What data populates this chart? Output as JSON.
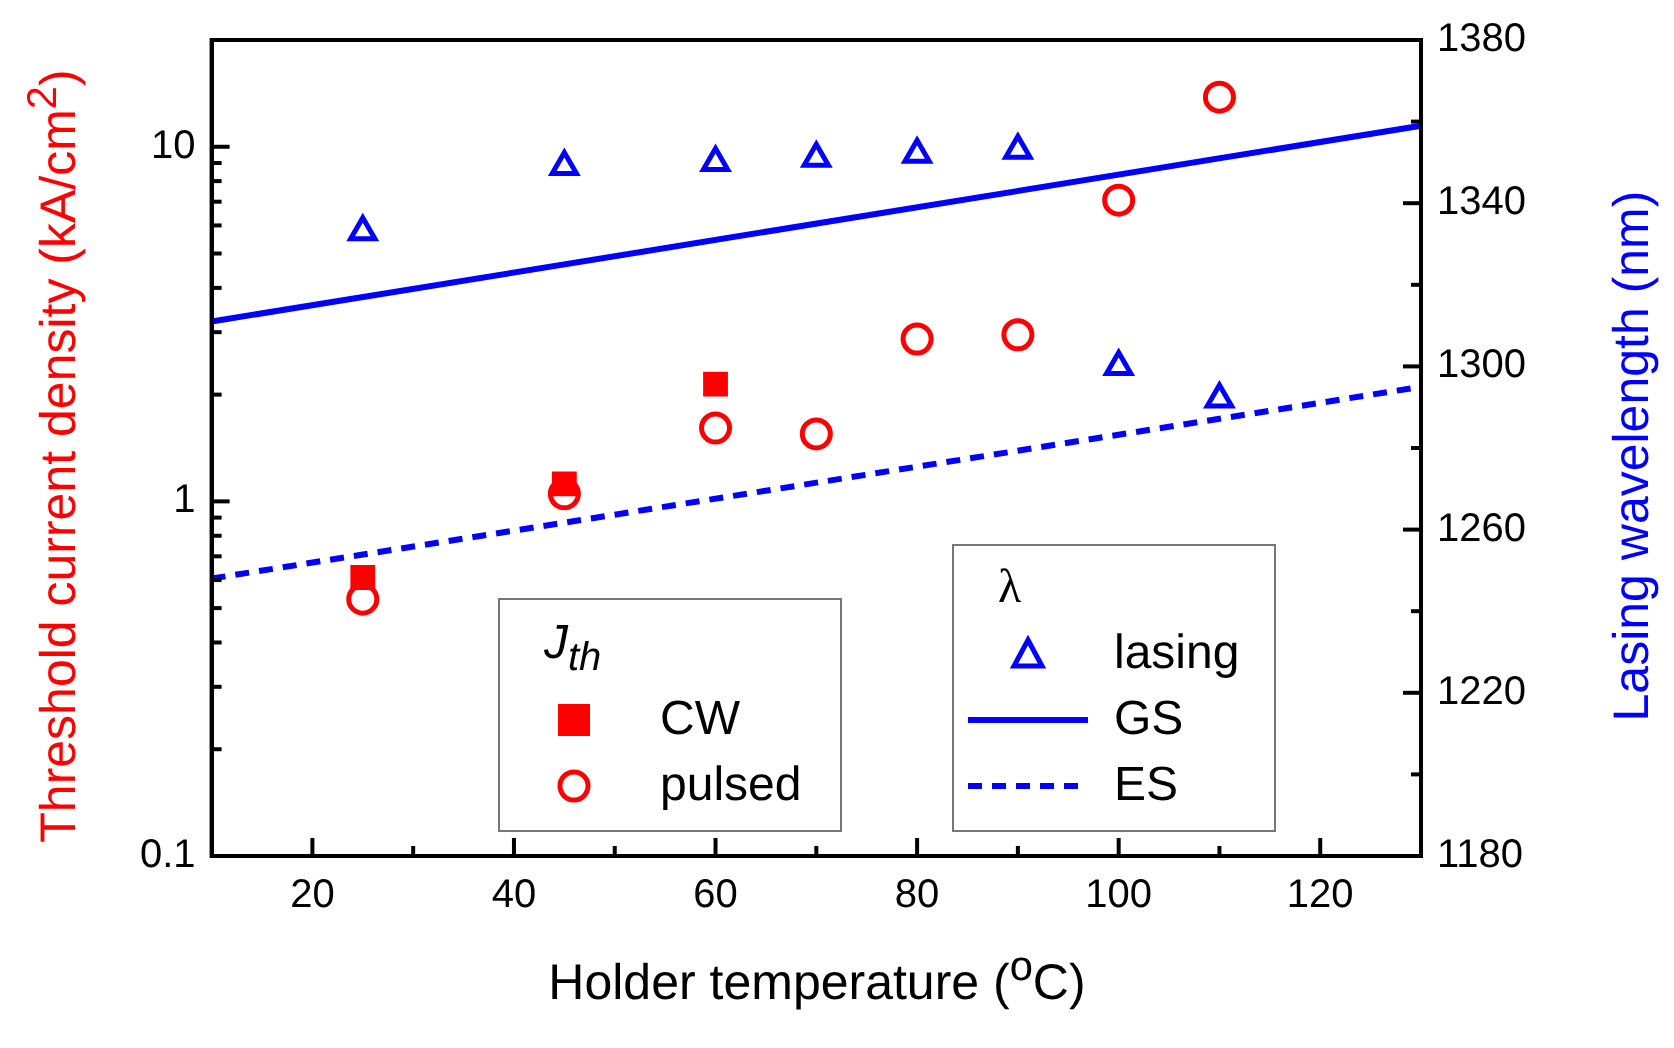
{
  "chart_data": {
    "type": "scatter",
    "xlabel": "Holder temperature ($^{o}$C)",
    "ylabel": "Threshold current density (kA/cm$^{2}$)",
    "y2label": "Lasing wavelength (nm)",
    "annotations": [
      "J$_{th}$",
      "λ"
    ],
    "xlim": [
      10,
      130
    ],
    "xticks": [
      20,
      {
        "value": 30,
        "label": null
      },
      40,
      {
        "value": 50,
        "label": null
      },
      60,
      {
        "value": 70,
        "label": null
      },
      80,
      {
        "value": 90,
        "label": null
      },
      100,
      {
        "value": 110,
        "label": null
      },
      120
    ],
    "ylim": [
      0.1,
      20
    ],
    "log": "y",
    "yticks": [
      0.1,
      {
        "value": 0.2,
        "label": null
      },
      {
        "value": 0.3,
        "label": null
      },
      {
        "value": 0.4,
        "label": null
      },
      {
        "value": 0.5,
        "label": null
      },
      {
        "value": 0.6,
        "label": null
      },
      {
        "value": 0.7,
        "label": null
      },
      {
        "value": 0.8,
        "label": null
      },
      {
        "value": 0.9,
        "label": null
      },
      1,
      {
        "value": 2,
        "label": null
      },
      {
        "value": 3,
        "label": null
      },
      {
        "value": 4,
        "label": null
      },
      {
        "value": 5,
        "label": null
      },
      {
        "value": 6,
        "label": null
      },
      {
        "value": 7,
        "label": null
      },
      {
        "value": 8,
        "label": null
      },
      {
        "value": 9,
        "label": null
      },
      10
    ],
    "y2lim": [
      1180,
      1380
    ],
    "y2ticks": [
      1180,
      {
        "value": 1200,
        "label": null
      },
      1220,
      {
        "value": 1240,
        "label": null
      },
      1260,
      {
        "value": 1280,
        "label": null
      },
      1300,
      {
        "value": 1320,
        "label": null
      },
      1340,
      {
        "value": 1360,
        "label": null
      },
      1380
    ],
    "grid": false,
    "legend": "bottom right",
    "series": [
      {
        "name": "CW",
        "type": "scatter",
        "marker": "square",
        "color": "#ff0000",
        "x": [
          25,
          45,
          60
        ],
        "values": [
          0.61,
          1.12,
          2.14
        ]
      },
      {
        "name": "pulsed",
        "type": "scatter",
        "marker": "circle",
        "color": "#ff0000",
        "x": [
          25,
          45,
          60,
          70,
          80,
          90,
          100,
          110
        ],
        "values": [
          0.53,
          1.05,
          1.61,
          1.55,
          2.87,
          2.95,
          7.07,
          13.8
        ]
      },
      {
        "name": "lasing",
        "type": "scatter",
        "marker": "triangle",
        "axis": "y2",
        "color": "#0000ff",
        "x": [
          25,
          45,
          60,
          70,
          80,
          90,
          100,
          110
        ],
        "values": [
          1333,
          1349,
          1350,
          1351,
          1352,
          1353,
          1300,
          1292
        ]
      },
      {
        "name": "GS",
        "type": "line",
        "marker": "none",
        "line_style": "solid",
        "axis": "y2",
        "color": "#0000ff",
        "x": [
          10,
          130
        ],
        "values": [
          1311,
          1359
        ]
      },
      {
        "name": "ES",
        "type": "line",
        "marker": "none",
        "line_style": "dashed",
        "axis": "y2",
        "color": "#0000ff",
        "x": [
          10,
          130
        ],
        "values": [
          1248,
          1295
        ]
      }
    ]
  }
}
